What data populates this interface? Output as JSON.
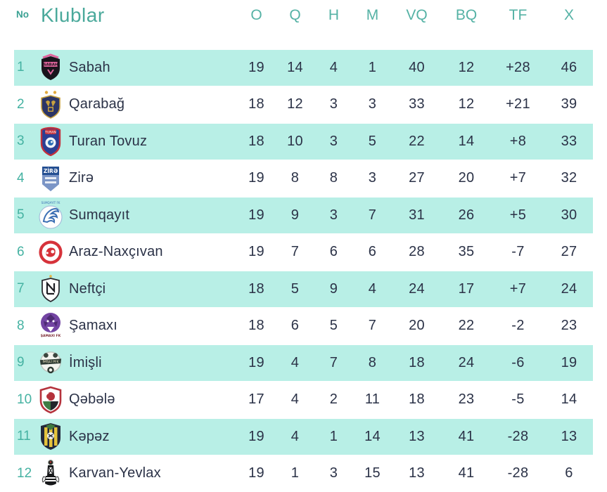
{
  "header": {
    "no_label": "No",
    "club_label": "Klublar",
    "stat_columns": [
      "O",
      "Q",
      "H",
      "M",
      "VQ",
      "BQ",
      "TF",
      "X"
    ]
  },
  "colors": {
    "accent_teal": "#45b2a2",
    "header_teal": "#4aa99b",
    "row_stripe": "#b8efe6",
    "text_dark": "#2b3247"
  },
  "rows": [
    {
      "rank": "1",
      "club": "Sabah",
      "logo": "sabah-logo",
      "stats": [
        "19",
        "14",
        "4",
        "1",
        "40",
        "12",
        "+28",
        "46"
      ]
    },
    {
      "rank": "2",
      "club": "Qarabağ",
      "logo": "qarabag-logo",
      "stats": [
        "18",
        "12",
        "3",
        "3",
        "33",
        "12",
        "+21",
        "39"
      ]
    },
    {
      "rank": "3",
      "club": "Turan Tovuz",
      "logo": "turan-tovuz-logo",
      "stats": [
        "18",
        "10",
        "3",
        "5",
        "22",
        "14",
        "+8",
        "33"
      ]
    },
    {
      "rank": "4",
      "club": "Zirə",
      "logo": "zira-logo",
      "stats": [
        "19",
        "8",
        "8",
        "3",
        "27",
        "20",
        "+7",
        "32"
      ]
    },
    {
      "rank": "5",
      "club": "Sumqayıt",
      "logo": "sumqayit-logo",
      "stats": [
        "19",
        "9",
        "3",
        "7",
        "31",
        "26",
        "+5",
        "30"
      ]
    },
    {
      "rank": "6",
      "club": "Araz-Naxçıvan",
      "logo": "araz-naxcivan-logo",
      "stats": [
        "19",
        "7",
        "6",
        "6",
        "28",
        "35",
        "-7",
        "27"
      ]
    },
    {
      "rank": "7",
      "club": "Neftçi",
      "logo": "neftci-logo",
      "stats": [
        "18",
        "5",
        "9",
        "4",
        "24",
        "17",
        "+7",
        "24"
      ]
    },
    {
      "rank": "8",
      "club": "Şamaxı",
      "logo": "samaxi-logo",
      "stats": [
        "18",
        "6",
        "5",
        "7",
        "20",
        "22",
        "-2",
        "23"
      ]
    },
    {
      "rank": "9",
      "club": "İmişli",
      "logo": "imisli-logo",
      "stats": [
        "19",
        "4",
        "7",
        "8",
        "18",
        "24",
        "-6",
        "19"
      ]
    },
    {
      "rank": "10",
      "club": "Qəbələ",
      "logo": "qabala-logo",
      "stats": [
        "17",
        "4",
        "2",
        "11",
        "18",
        "23",
        "-5",
        "14"
      ]
    },
    {
      "rank": "11",
      "club": "Kəpəz",
      "logo": "kapaz-logo",
      "stats": [
        "19",
        "4",
        "1",
        "14",
        "13",
        "41",
        "-28",
        "13"
      ]
    },
    {
      "rank": "12",
      "club": "Karvan-Yevlax",
      "logo": "karvan-yevlax-logo",
      "stats": [
        "19",
        "1",
        "3",
        "15",
        "13",
        "41",
        "-28",
        "6"
      ]
    }
  ]
}
